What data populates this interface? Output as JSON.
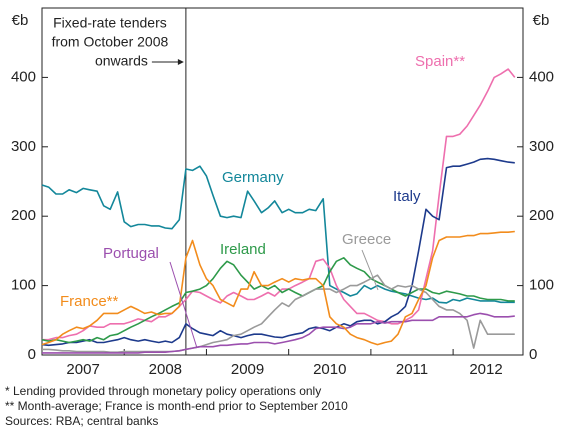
{
  "chart_data": {
    "type": "line",
    "ylabel": "€b",
    "y2label": "€b",
    "xlim": [
      2007,
      2012.85
    ],
    "ylim": [
      0,
      500
    ],
    "y2lim": [
      0,
      500
    ],
    "yticks": [
      0,
      100,
      200,
      300,
      400
    ],
    "y2ticks": [
      0,
      100,
      200,
      300,
      400
    ],
    "xticks": [
      {
        "value": 2007.5,
        "label": "2007"
      },
      {
        "value": 2008.5,
        "label": "2008"
      },
      {
        "value": 2009.5,
        "label": "2009"
      },
      {
        "value": 2010.5,
        "label": "2010"
      },
      {
        "value": 2011.5,
        "label": "2011"
      },
      {
        "value": 2012.4,
        "label": "2012"
      }
    ],
    "xtick_marks": [
      2008,
      2009,
      2010,
      2011,
      2012
    ],
    "grid": false,
    "annotation": {
      "text": [
        "Fixed-rate tenders",
        "from October 2008",
        "onwards"
      ],
      "x": 2008.75
    },
    "notes": [
      "*     Lending provided through monetary policy operations only",
      "**   Month-average; France is month-end prior to September 2010",
      "Sources: RBA; central banks"
    ],
    "x": [
      2007,
      2007.08,
      2007.17,
      2007.25,
      2007.33,
      2007.42,
      2007.5,
      2007.58,
      2007.67,
      2007.75,
      2007.83,
      2007.92,
      2008,
      2008.08,
      2008.17,
      2008.25,
      2008.33,
      2008.42,
      2008.5,
      2008.58,
      2008.67,
      2008.75,
      2008.83,
      2008.92,
      2009,
      2009.08,
      2009.17,
      2009.25,
      2009.33,
      2009.42,
      2009.5,
      2009.58,
      2009.67,
      2009.75,
      2009.83,
      2009.92,
      2010,
      2010.08,
      2010.17,
      2010.25,
      2010.33,
      2010.42,
      2010.5,
      2010.58,
      2010.67,
      2010.75,
      2010.83,
      2010.92,
      2011,
      2011.08,
      2011.17,
      2011.25,
      2011.33,
      2011.42,
      2011.5,
      2011.58,
      2011.67,
      2011.75,
      2011.83,
      2011.92,
      2012,
      2012.08,
      2012.17,
      2012.25,
      2012.33,
      2012.42,
      2012.5,
      2012.58,
      2012.67,
      2012.75
    ],
    "series": [
      {
        "name": "Germany",
        "color": "#13879a",
        "values": [
          245,
          242,
          232,
          232,
          238,
          234,
          240,
          238,
          236,
          215,
          210,
          235,
          192,
          185,
          188,
          188,
          186,
          186,
          183,
          182,
          195,
          268,
          266,
          272,
          258,
          230,
          200,
          198,
          200,
          198,
          236,
          222,
          205,
          212,
          222,
          205,
          210,
          205,
          205,
          210,
          208,
          225,
          100,
          95,
          90,
          85,
          88,
          100,
          95,
          100,
          95,
          92,
          90,
          88,
          85,
          82,
          80,
          82,
          76,
          75,
          80,
          78,
          82,
          80,
          78,
          78,
          78,
          76,
          76,
          76
        ]
      },
      {
        "name": "Spain**",
        "color": "#ee6fae",
        "values": [
          22,
          22,
          25,
          25,
          28,
          30,
          35,
          42,
          40,
          40,
          45,
          45,
          45,
          48,
          52,
          50,
          48,
          55,
          55,
          60,
          70,
          80,
          92,
          90,
          85,
          80,
          75,
          85,
          90,
          85,
          80,
          80,
          85,
          90,
          85,
          95,
          95,
          100,
          105,
          110,
          135,
          138,
          125,
          100,
          80,
          70,
          60,
          60,
          55,
          50,
          48,
          45,
          45,
          50,
          55,
          65,
          110,
          150,
          230,
          315,
          315,
          318,
          330,
          345,
          360,
          380,
          400,
          405,
          412,
          400
        ]
      },
      {
        "name": "Italy",
        "color": "#1d3a8c",
        "values": [
          15,
          14,
          15,
          16,
          18,
          18,
          20,
          22,
          18,
          18,
          20,
          22,
          25,
          22,
          20,
          22,
          20,
          18,
          20,
          18,
          25,
          45,
          38,
          32,
          30,
          28,
          35,
          30,
          28,
          25,
          28,
          30,
          30,
          28,
          26,
          25,
          28,
          30,
          32,
          38,
          40,
          38,
          35,
          40,
          45,
          42,
          48,
          50,
          50,
          45,
          48,
          55,
          60,
          70,
          100,
          150,
          210,
          200,
          195,
          270,
          272,
          272,
          275,
          278,
          282,
          283,
          282,
          280,
          278,
          277
        ]
      },
      {
        "name": "Ireland",
        "color": "#2e9a4a",
        "values": [
          22,
          20,
          22,
          20,
          18,
          20,
          22,
          20,
          25,
          22,
          28,
          30,
          35,
          40,
          45,
          50,
          55,
          60,
          65,
          70,
          75,
          90,
          92,
          95,
          100,
          110,
          125,
          135,
          130,
          115,
          105,
          95,
          100,
          95,
          100,
          90,
          95,
          90,
          85,
          90,
          95,
          100,
          120,
          135,
          140,
          130,
          125,
          120,
          110,
          105,
          100,
          95,
          90,
          85,
          90,
          95,
          95,
          90,
          88,
          92,
          90,
          88,
          85,
          85,
          82,
          80,
          80,
          80,
          78,
          78
        ]
      },
      {
        "name": "Greece",
        "color": "#9a9a9a",
        "values": [
          8,
          8,
          7,
          6,
          6,
          5,
          5,
          5,
          5,
          5,
          4,
          4,
          5,
          5,
          5,
          5,
          5,
          5,
          5,
          5,
          6,
          8,
          10,
          12,
          15,
          18,
          20,
          22,
          28,
          30,
          35,
          40,
          45,
          55,
          65,
          75,
          70,
          80,
          85,
          90,
          95,
          95,
          95,
          90,
          95,
          100,
          100,
          105,
          110,
          115,
          100,
          95,
          100,
          98,
          100,
          95,
          90,
          80,
          70,
          65,
          65,
          60,
          50,
          10,
          50,
          30,
          30,
          30,
          30,
          30
        ]
      },
      {
        "name": "Portugal",
        "color": "#9b4fae",
        "values": [
          3,
          3,
          3,
          3,
          3,
          3,
          3,
          3,
          3,
          3,
          3,
          3,
          3,
          3,
          3,
          4,
          4,
          4,
          4,
          5,
          6,
          8,
          10,
          12,
          12,
          12,
          14,
          14,
          15,
          16,
          16,
          18,
          18,
          18,
          16,
          18,
          20,
          22,
          25,
          30,
          38,
          40,
          40,
          40,
          38,
          40,
          45,
          45,
          45,
          48,
          46,
          48,
          48,
          48,
          50,
          50,
          50,
          50,
          55,
          55,
          55,
          55,
          55,
          58,
          60,
          58,
          55,
          55,
          55,
          56
        ]
      },
      {
        "name": "France**",
        "color": "#f28c1c",
        "values": [
          15,
          18,
          22,
          30,
          35,
          40,
          38,
          42,
          50,
          60,
          60,
          60,
          65,
          70,
          65,
          60,
          62,
          58,
          60,
          60,
          70,
          140,
          165,
          130,
          110,
          100,
          80,
          75,
          70,
          95,
          95,
          120,
          100,
          100,
          105,
          110,
          105,
          110,
          108,
          110,
          110,
          100,
          55,
          45,
          40,
          30,
          25,
          22,
          18,
          15,
          18,
          20,
          30,
          55,
          60,
          80,
          100,
          140,
          165,
          170,
          170,
          170,
          172,
          172,
          175,
          175,
          176,
          177,
          177,
          178
        ]
      }
    ]
  }
}
